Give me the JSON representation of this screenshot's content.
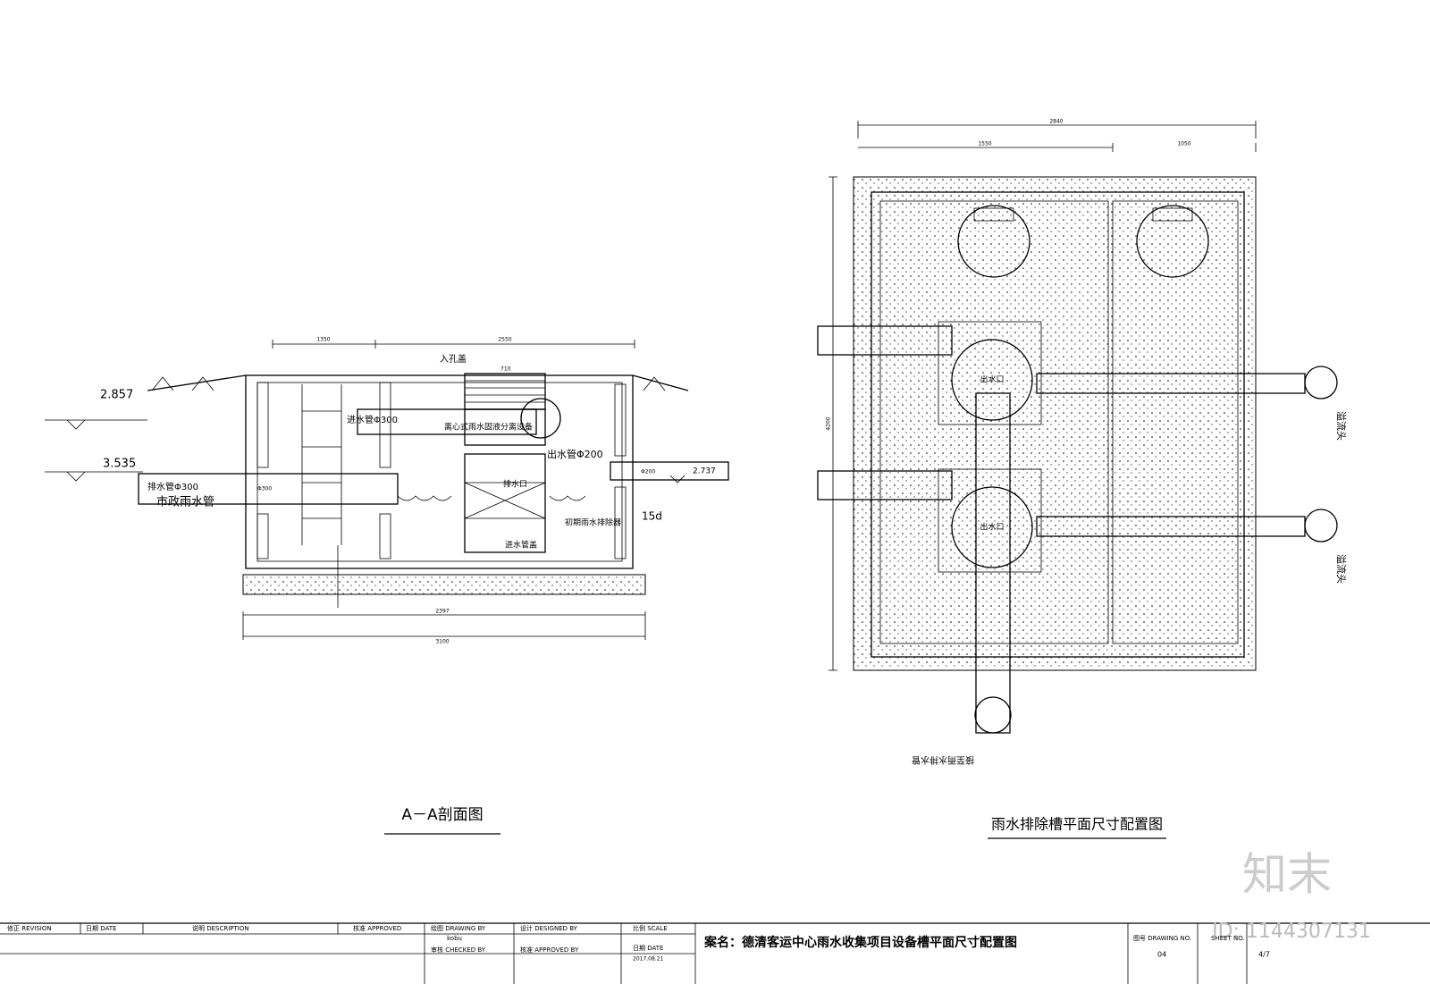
{
  "section_view": {
    "title": "A－A剖面图",
    "levels": [
      "2.857",
      "3.535",
      "2.737"
    ],
    "labels": [
      "入孔盖",
      "离心式雨水固液分离设备",
      "进水管Φ300",
      "出水管Φ200",
      "排水管Φ300",
      "市政雨水管",
      "排水口",
      "15d",
      "初期雨水排除器",
      "进水管盖"
    ],
    "dimensions": [
      "1350",
      "2550",
      "2397",
      "3100",
      "710",
      "Φ300",
      "Φ200"
    ]
  },
  "plan_view": {
    "title": "雨水排除槽平面尺寸配置图",
    "dimensions": [
      "2840",
      "1550",
      "1050",
      "4200"
    ],
    "labels": [
      "溢流头",
      "溢流头",
      "接至雨水排水管",
      "出水口",
      "出水口"
    ]
  },
  "title_block": {
    "revision": "修正 REVISION",
    "date": "日期 DATE",
    "description": "说明 DESCRIPTION",
    "approved": "核准 APPROVED",
    "drawing_by": "绘图 DRAWING BY",
    "drawer": "kobu",
    "checked_by": "审核 CHECKED BY",
    "designed_by": "设计 DESIGNED BY",
    "approved_by": "核准 APPROVED BY",
    "scale": "比例 SCALE",
    "date2": "日期 DATE",
    "date_value": "2017.08.21",
    "project": "案名：德清客运中心雨水收集项目设备槽平面尺寸配置图",
    "drawing_no": "图号 DRAWING NO.",
    "drawing_no_value": "04",
    "sheet_no": "SHEET NO.",
    "sheet_no_value": "4/7"
  },
  "watermark": {
    "logo": "知末",
    "id": "ID: 1144307131"
  }
}
